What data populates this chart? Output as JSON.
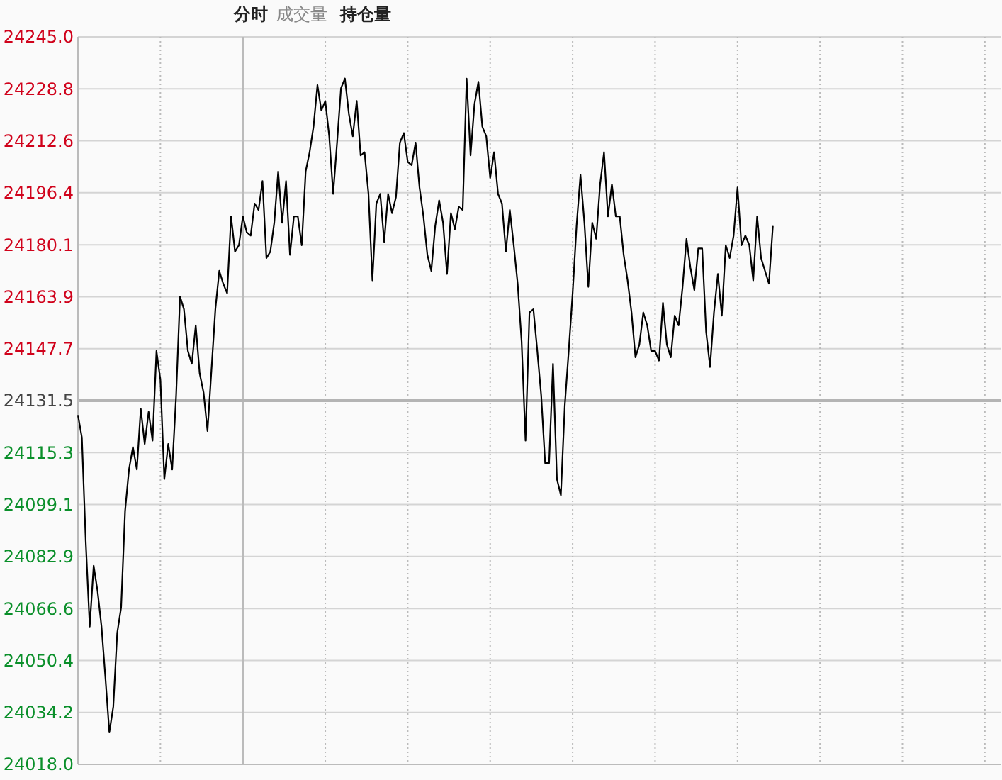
{
  "chart_data": {
    "type": "line",
    "annotations": [
      "分时",
      "成交量",
      "持仓量"
    ],
    "categories": [
      null,
      null,
      null,
      null,
      null,
      null,
      null,
      null,
      null,
      null,
      null,
      null,
      null,
      null,
      null,
      null,
      null,
      null,
      null,
      null,
      null,
      null,
      null,
      null,
      null,
      null,
      null,
      null,
      null,
      null,
      null,
      null,
      null,
      null,
      null,
      null,
      null,
      null,
      null,
      null,
      null,
      null,
      null,
      null,
      null,
      null,
      null,
      null,
      null,
      null,
      null,
      null,
      null,
      null,
      null,
      null,
      null,
      null,
      null,
      null,
      null,
      null,
      null,
      null,
      null,
      null,
      null,
      null,
      null,
      null,
      null,
      null,
      null,
      null,
      null,
      null,
      null,
      null,
      null,
      null,
      null,
      null,
      null,
      null,
      null,
      null,
      null,
      null,
      null,
      null,
      null,
      null,
      null,
      null,
      null,
      null,
      null,
      null,
      null,
      null,
      null,
      null,
      null,
      null,
      null,
      null,
      null,
      null,
      null,
      null,
      null,
      null,
      null,
      null,
      null,
      null,
      null,
      null,
      null,
      null,
      null,
      null,
      null,
      null,
      null,
      null,
      null,
      null,
      null,
      null,
      null,
      null,
      null,
      null,
      null,
      null,
      null,
      null,
      null,
      null,
      null,
      null,
      null,
      null,
      null,
      null,
      null,
      null,
      null,
      null,
      null,
      null,
      null,
      null,
      null,
      null,
      null,
      null,
      null,
      null,
      null,
      null,
      null,
      null,
      null,
      null,
      null,
      null,
      null,
      null,
      null,
      null,
      null,
      null,
      null,
      null,
      null,
      null,
      null,
      null,
      null,
      null,
      null,
      null,
      null,
      null,
      null,
      null,
      null,
      null,
      null,
      null,
      null,
      null,
      null,
      null,
      null,
      null,
      null,
      null,
      null,
      null,
      null,
      null,
      null,
      null,
      null,
      null,
      null,
      null,
      null,
      null,
      null,
      null,
      null,
      null,
      null,
      null,
      null,
      null,
      null,
      null,
      null,
      null,
      null,
      null,
      null,
      null,
      null,
      null,
      null,
      null,
      null,
      null,
      null,
      null
    ],
    "ylim": [
      24018.0,
      24245.0
    ],
    "yticks": [
      {
        "value": 24018.0,
        "label": "24018.0"
      },
      {
        "value": 24034.2,
        "label": "24034.2"
      },
      {
        "value": 24050.4,
        "label": "24050.4"
      },
      {
        "value": 24066.6,
        "label": "24066.6"
      },
      {
        "value": 24082.9,
        "label": "24082.9"
      },
      {
        "value": 24099.1,
        "label": "24099.1"
      },
      {
        "value": 24115.3,
        "label": "24115.3"
      },
      {
        "value": 24131.5,
        "label": "24131.5"
      },
      {
        "value": 24147.7,
        "label": "24147.7"
      },
      {
        "value": 24163.9,
        "label": "24163.9"
      },
      {
        "value": 24180.1,
        "label": "24180.1"
      },
      {
        "value": 24196.4,
        "label": "24196.4"
      },
      {
        "value": 24212.6,
        "label": "24212.6"
      },
      {
        "value": 24228.8,
        "label": "24228.8"
      },
      {
        "value": 24245.0,
        "label": "24245.0"
      }
    ],
    "tick_labels": "y",
    "grid": true,
    "marker": "none",
    "line_style": "solid",
    "ref_lines": [
      {
        "axis": "y",
        "value": 24131.5,
        "color": "#b4b4b4"
      }
    ],
    "series": [
      {
        "color": "#000000",
        "values": [
          24127,
          24120,
          24087,
          24061,
          24080,
          24072,
          24061,
          24045,
          24028,
          24036,
          24059,
          24067,
          24097,
          24110,
          24117,
          24110,
          24129,
          24118,
          24128,
          24119,
          24147,
          24138,
          24107,
          24118,
          24110,
          24133,
          24164,
          24160,
          24147,
          24143,
          24155,
          24140,
          24134,
          24122,
          24141,
          24160,
          24172,
          24168,
          24165,
          24189,
          24178,
          24180,
          24189,
          24184,
          24183,
          24193,
          24191,
          24200,
          24176,
          24178,
          24187,
          24203,
          24187,
          24200,
          24177,
          24189,
          24189,
          24180,
          24203,
          24209,
          24217,
          24230,
          24222,
          24225,
          24214,
          24196,
          24212,
          24229,
          24232,
          24221,
          24214,
          24225,
          24208,
          24209,
          24196,
          24169,
          24193,
          24196,
          24181,
          24196,
          24190,
          24195,
          24212,
          24215,
          24206,
          24205,
          24212,
          24198,
          24189,
          24177,
          24172,
          24186,
          24194,
          24187,
          24171,
          24190,
          24185,
          24192,
          24191,
          24232,
          24208,
          24224,
          24231,
          24217,
          24214,
          24201,
          24209,
          24196,
          24193,
          24178,
          24191,
          24180,
          24168,
          24150,
          24119,
          24159,
          24160,
          24147,
          24133,
          24112,
          24112,
          24143,
          24107,
          24102,
          24130,
          24147,
          24165,
          24186,
          24202,
          24187,
          24167,
          24187,
          24182,
          24199,
          24209,
          24189,
          24199,
          24189,
          24189,
          24177,
          24169,
          24159,
          24145,
          24149,
          24159,
          24155,
          24147,
          24147,
          24144,
          24162,
          24149,
          24145,
          24158,
          24155,
          24167,
          24182,
          24173,
          24166,
          24179,
          24179,
          24153,
          24142,
          24159,
          24171,
          24158,
          24180,
          24176,
          24183,
          24198,
          24180,
          24183,
          24180,
          24169,
          24189,
          24176,
          24172,
          24168,
          24186,
          null,
          null,
          null,
          null,
          null,
          null,
          null,
          null,
          null,
          null,
          null,
          null,
          null,
          null,
          null,
          null,
          null,
          null,
          null,
          null,
          null,
          null,
          null,
          null,
          null,
          null,
          null,
          null,
          null,
          null,
          null,
          null,
          null,
          null,
          null,
          null,
          null,
          null,
          null,
          null,
          null,
          null,
          null,
          null,
          null,
          null,
          null,
          null,
          null,
          null,
          null,
          null,
          null,
          null,
          null,
          null,
          null,
          null
        ]
      }
    ]
  }
}
